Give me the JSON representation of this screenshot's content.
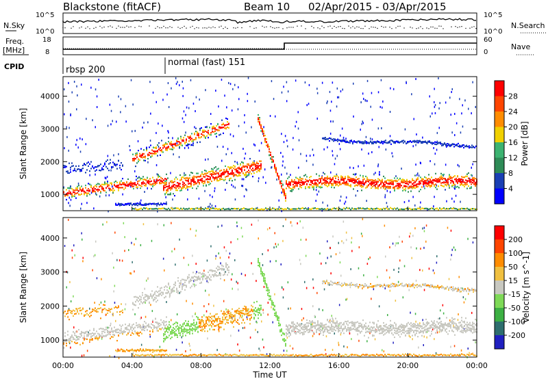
{
  "header": {
    "station": "Blackstone (fitACF)",
    "beam": "Beam 10",
    "date_range": "02/Apr/2015 - 03/Apr/2015"
  },
  "noise_panel": {
    "left_label": "N.Sky",
    "right_label": "N.Search",
    "left_ticks": [
      "10^5",
      "10^0"
    ],
    "right_ticks": [
      "10^5",
      "10^0"
    ]
  },
  "freq_panel": {
    "left_label_1": "Freq.",
    "left_label_2": "[MHz]",
    "left_ticks": [
      "18",
      "8"
    ],
    "right_label": "Nave",
    "right_ticks": [
      "60",
      "0"
    ]
  },
  "cpid_panel": {
    "label": "CPID",
    "modes": [
      {
        "name": "rbsp 200",
        "start": 0.0
      },
      {
        "name": "normal (fast) 151",
        "start": 6.0
      }
    ]
  },
  "chart_data": [
    {
      "type": "heatmap",
      "name": "power-panel",
      "ylabel": "Slant Range [km]",
      "xlabel": "",
      "xlim": [
        0,
        24
      ],
      "ylim": [
        500,
        4600
      ],
      "y_ticks": [
        "1000",
        "2000",
        "3000",
        "4000"
      ],
      "colorbar": {
        "label": "Power [dB]",
        "ticks": [
          "4",
          "8",
          "12",
          "16",
          "20",
          "24",
          "28"
        ],
        "colors": [
          "#0000ff",
          "#1a3fb4",
          "#2e8b57",
          "#3cb371",
          "#f0d000",
          "#ff8c00",
          "#ff4500",
          "#ff0000"
        ]
      }
    },
    {
      "type": "heatmap",
      "name": "velocity-panel",
      "ylabel": "Slant Range [km]",
      "xlabel": "Time UT",
      "xlim": [
        0,
        24
      ],
      "ylim": [
        500,
        4600
      ],
      "y_ticks": [
        "1000",
        "2000",
        "3000",
        "4000"
      ],
      "x_ticks": [
        "00:00",
        "04:00",
        "08:00",
        "12:00",
        "16:00",
        "20:00",
        "00:00"
      ],
      "colorbar": {
        "label": "Velocity [m s^-1]",
        "ticks": [
          "200",
          "100",
          "50",
          "15",
          "-15",
          "-50",
          "-100",
          "-200"
        ],
        "colors": [
          "#2020c0",
          "#2e6e6e",
          "#3cb043",
          "#7ed957",
          "#c8c8c0",
          "#f0c040",
          "#ff8c00",
          "#ff4500",
          "#ff0000"
        ]
      }
    }
  ]
}
